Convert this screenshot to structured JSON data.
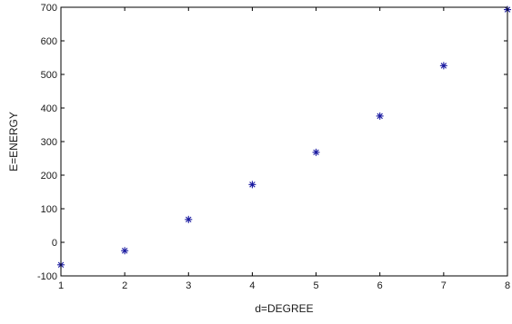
{
  "chart_data": {
    "type": "scatter",
    "title": "",
    "xlabel": "d=DEGREE",
    "ylabel": "E=ENERGY",
    "xlim": [
      1,
      8
    ],
    "ylim": [
      -100,
      700
    ],
    "xticks": [
      1,
      2,
      3,
      4,
      5,
      6,
      7,
      8
    ],
    "yticks": [
      -100,
      0,
      100,
      200,
      300,
      400,
      500,
      600,
      700
    ],
    "grid": false,
    "marker": "asterisk",
    "marker_color": "#1a1aa0",
    "series": [
      {
        "x": [
          1,
          2,
          3,
          4,
          5,
          6,
          7,
          8
        ],
        "y": [
          -67,
          -25,
          68,
          172,
          268,
          376,
          526,
          693
        ]
      }
    ]
  }
}
